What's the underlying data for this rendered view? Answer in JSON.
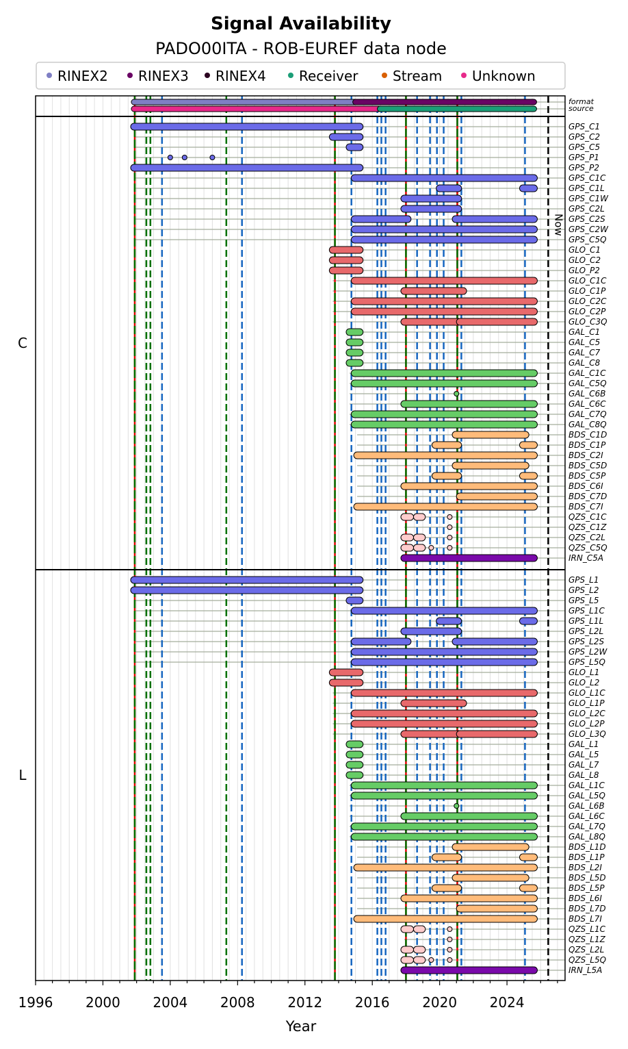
{
  "chart_data": {
    "type": "timeline",
    "title": "Signal Availability",
    "subtitle": "PADO00ITA - ROB-EUREF data node",
    "xlabel": "Year",
    "xlim": [
      1996,
      2027.45
    ],
    "xticks": [
      "1996",
      "2000",
      "2004",
      "2008",
      "2012",
      "2016",
      "2020",
      "2024"
    ],
    "legend": {
      "placement": "top",
      "entries": [
        {
          "label": "RINEX2",
          "color": "#7f7fc4"
        },
        {
          "label": "RINEX3",
          "color": "#6a0464"
        },
        {
          "label": "RINEX4",
          "color": "#2b0420"
        },
        {
          "label": "Receiver",
          "color": "#1b9e77"
        },
        {
          "label": "Stream",
          "color": "#d95f02"
        },
        {
          "label": "Unknown",
          "color": "#e7298a"
        }
      ]
    },
    "now_label": "Now",
    "now_year": 2026.45,
    "vlines": [
      {
        "year": 2001.89,
        "kind": "redgreen"
      },
      {
        "year": 2013.78,
        "kind": "redgreen"
      },
      {
        "year": 2018.0,
        "kind": "redgreen"
      },
      {
        "year": 2021.05,
        "kind": "redgreen"
      },
      {
        "year": 2002.58,
        "kind": "green"
      },
      {
        "year": 2002.82,
        "kind": "green"
      },
      {
        "year": 2007.33,
        "kind": "green"
      },
      {
        "year": 2003.51,
        "kind": "blue"
      },
      {
        "year": 2008.26,
        "kind": "blue"
      },
      {
        "year": 2014.76,
        "kind": "blue"
      },
      {
        "year": 2016.3,
        "kind": "blue"
      },
      {
        "year": 2016.54,
        "kind": "blue"
      },
      {
        "year": 2016.79,
        "kind": "blue"
      },
      {
        "year": 2018.66,
        "kind": "blue"
      },
      {
        "year": 2019.43,
        "kind": "blue"
      },
      {
        "year": 2019.84,
        "kind": "blue"
      },
      {
        "year": 2020.24,
        "kind": "blue"
      },
      {
        "year": 2021.29,
        "kind": "blue"
      },
      {
        "year": 2025.07,
        "kind": "blue"
      }
    ],
    "constellation_colors": {
      "GPS": "#6b6be8",
      "GLO": "#e8696b",
      "GAL": "#66cc66",
      "BDS": "#ffbb7a",
      "QZS": "#ffcccc",
      "IRN": "#7a0aaa"
    },
    "header_rows": [
      {
        "label": "format",
        "segments": [
          [
            2001.85,
            2015.0,
            "#7f7fc4"
          ],
          [
            2015.0,
            2025.6,
            "#6a0464"
          ]
        ]
      },
      {
        "label": "source",
        "segments": [
          [
            2001.85,
            2016.46,
            "#e7298a"
          ],
          [
            2016.46,
            2025.6,
            "#1b9e77"
          ]
        ]
      }
    ],
    "groups": [
      {
        "label": "C",
        "rows": [
          {
            "label": "GPS_C1",
            "segments": [
              [
                2001.85,
                2015.25
              ]
            ]
          },
          {
            "label": "GPS_C2",
            "segments": [
              [
                2013.65,
                2015.25
              ]
            ]
          },
          {
            "label": "GPS_C5",
            "segments": [
              [
                2014.65,
                2015.25
              ]
            ]
          },
          {
            "label": "GPS_P1",
            "segments": [
              [
                2004.0,
                2004.0
              ],
              [
                2004.85,
                2004.85
              ],
              [
                2006.5,
                2006.5
              ]
            ]
          },
          {
            "label": "GPS_P2",
            "segments": [
              [
                2001.85,
                2015.25
              ]
            ]
          },
          {
            "label": "GPS_C1C",
            "segments": [
              [
                2014.95,
                2025.6
              ]
            ]
          },
          {
            "label": "GPS_C1L",
            "segments": [
              [
                2020.0,
                2021.1
              ],
              [
                2024.95,
                2025.6
              ]
            ]
          },
          {
            "label": "GPS_C1W",
            "segments": [
              [
                2017.9,
                2021.1
              ]
            ]
          },
          {
            "label": "GPS_C2L",
            "segments": [
              [
                2017.9,
                2021.1
              ]
            ]
          },
          {
            "label": "GPS_C2S",
            "segments": [
              [
                2014.95,
                2018.1
              ],
              [
                2020.95,
                2025.6
              ]
            ]
          },
          {
            "label": "GPS_C2W",
            "segments": [
              [
                2014.95,
                2025.6
              ]
            ]
          },
          {
            "label": "GPS_C5Q",
            "segments": [
              [
                2014.95,
                2025.6
              ]
            ]
          },
          {
            "label": "GLO_C1",
            "segments": [
              [
                2013.65,
                2015.25
              ]
            ]
          },
          {
            "label": "GLO_C2",
            "segments": [
              [
                2013.65,
                2015.25
              ]
            ]
          },
          {
            "label": "GLO_P2",
            "segments": [
              [
                2013.65,
                2015.25
              ]
            ]
          },
          {
            "label": "GLO_C1C",
            "segments": [
              [
                2014.95,
                2025.6
              ]
            ]
          },
          {
            "label": "GLO_C1P",
            "segments": [
              [
                2017.9,
                2021.4
              ]
            ]
          },
          {
            "label": "GLO_C2C",
            "segments": [
              [
                2014.95,
                2025.6
              ]
            ]
          },
          {
            "label": "GLO_C2P",
            "segments": [
              [
                2014.95,
                2025.6
              ]
            ]
          },
          {
            "label": "GLO_C3Q",
            "segments": [
              [
                2017.9,
                2021.1
              ],
              [
                2021.2,
                2025.6
              ]
            ]
          },
          {
            "label": "GAL_C1",
            "segments": [
              [
                2014.65,
                2015.25
              ]
            ]
          },
          {
            "label": "GAL_C5",
            "segments": [
              [
                2014.65,
                2015.25
              ]
            ]
          },
          {
            "label": "GAL_C7",
            "segments": [
              [
                2014.65,
                2015.25
              ]
            ]
          },
          {
            "label": "GAL_C8",
            "segments": [
              [
                2014.65,
                2015.25
              ]
            ]
          },
          {
            "label": "GAL_C1C",
            "segments": [
              [
                2014.95,
                2025.6
              ]
            ]
          },
          {
            "label": "GAL_C5Q",
            "segments": [
              [
                2014.95,
                2025.6
              ]
            ]
          },
          {
            "label": "GAL_C6B",
            "segments": [
              [
                2021.0,
                2021.0
              ]
            ]
          },
          {
            "label": "GAL_C6C",
            "segments": [
              [
                2017.9,
                2025.6
              ]
            ]
          },
          {
            "label": "GAL_C7Q",
            "segments": [
              [
                2014.95,
                2025.6
              ]
            ]
          },
          {
            "label": "GAL_C8Q",
            "segments": [
              [
                2014.95,
                2025.6
              ]
            ]
          },
          {
            "label": "BDS_C1D",
            "segments": [
              [
                2020.95,
                2025.1
              ]
            ]
          },
          {
            "label": "BDS_C1P",
            "segments": [
              [
                2019.75,
                2021.1
              ],
              [
                2024.95,
                2025.6
              ]
            ]
          },
          {
            "label": "BDS_C2I",
            "segments": [
              [
                2015.1,
                2025.6
              ]
            ]
          },
          {
            "label": "BDS_C5D",
            "segments": [
              [
                2020.95,
                2025.1
              ]
            ]
          },
          {
            "label": "BDS_C5P",
            "segments": [
              [
                2019.75,
                2021.1
              ],
              [
                2024.95,
                2025.6
              ]
            ]
          },
          {
            "label": "BDS_C6I",
            "segments": [
              [
                2017.9,
                2025.6
              ]
            ]
          },
          {
            "label": "BDS_C7D",
            "segments": [
              [
                2021.2,
                2025.6
              ]
            ]
          },
          {
            "label": "BDS_C7I",
            "segments": [
              [
                2015.1,
                2025.6
              ]
            ]
          },
          {
            "label": "QZS_C1C",
            "segments": [
              [
                2017.9,
                2018.25
              ],
              [
                2018.65,
                2018.95
              ],
              [
                2020.6,
                2020.6
              ]
            ]
          },
          {
            "label": "QZS_C1Z",
            "segments": [
              [
                2020.6,
                2020.6
              ]
            ]
          },
          {
            "label": "QZS_C2L",
            "segments": [
              [
                2017.9,
                2018.25
              ],
              [
                2018.65,
                2018.95
              ],
              [
                2020.6,
                2020.6
              ]
            ]
          },
          {
            "label": "QZS_C5Q",
            "segments": [
              [
                2017.9,
                2018.25
              ],
              [
                2018.65,
                2018.95
              ],
              [
                2019.5,
                2019.5
              ],
              [
                2020.6,
                2020.6
              ]
            ]
          },
          {
            "label": "IRN_C5A",
            "segments": [
              [
                2017.9,
                2025.6
              ]
            ]
          }
        ]
      },
      {
        "label": "L",
        "rows": [
          {
            "label": "GPS_L1",
            "segments": [
              [
                2001.85,
                2015.25
              ]
            ]
          },
          {
            "label": "GPS_L2",
            "segments": [
              [
                2001.85,
                2015.25
              ]
            ]
          },
          {
            "label": "GPS_L5",
            "segments": [
              [
                2014.65,
                2015.25
              ]
            ]
          },
          {
            "label": "GPS_L1C",
            "segments": [
              [
                2014.95,
                2025.6
              ]
            ]
          },
          {
            "label": "GPS_L1L",
            "segments": [
              [
                2020.0,
                2021.1
              ],
              [
                2024.95,
                2025.6
              ]
            ]
          },
          {
            "label": "GPS_L2L",
            "segments": [
              [
                2017.9,
                2021.1
              ]
            ]
          },
          {
            "label": "GPS_L2S",
            "segments": [
              [
                2014.95,
                2018.1
              ],
              [
                2020.95,
                2025.6
              ]
            ]
          },
          {
            "label": "GPS_L2W",
            "segments": [
              [
                2014.95,
                2025.6
              ]
            ]
          },
          {
            "label": "GPS_L5Q",
            "segments": [
              [
                2014.95,
                2025.6
              ]
            ]
          },
          {
            "label": "GLO_L1",
            "segments": [
              [
                2013.65,
                2015.25
              ]
            ]
          },
          {
            "label": "GLO_L2",
            "segments": [
              [
                2013.65,
                2015.25
              ]
            ]
          },
          {
            "label": "GLO_L1C",
            "segments": [
              [
                2014.95,
                2025.6
              ]
            ]
          },
          {
            "label": "GLO_L1P",
            "segments": [
              [
                2017.9,
                2021.4
              ]
            ]
          },
          {
            "label": "GLO_L2C",
            "segments": [
              [
                2014.95,
                2025.6
              ]
            ]
          },
          {
            "label": "GLO_L2P",
            "segments": [
              [
                2014.95,
                2025.6
              ]
            ]
          },
          {
            "label": "GLO_L3Q",
            "segments": [
              [
                2017.9,
                2021.1
              ],
              [
                2021.2,
                2025.6
              ]
            ]
          },
          {
            "label": "GAL_L1",
            "segments": [
              [
                2014.65,
                2015.25
              ]
            ]
          },
          {
            "label": "GAL_L5",
            "segments": [
              [
                2014.65,
                2015.25
              ]
            ]
          },
          {
            "label": "GAL_L7",
            "segments": [
              [
                2014.65,
                2015.25
              ]
            ]
          },
          {
            "label": "GAL_L8",
            "segments": [
              [
                2014.65,
                2015.25
              ]
            ]
          },
          {
            "label": "GAL_L1C",
            "segments": [
              [
                2014.95,
                2025.6
              ]
            ]
          },
          {
            "label": "GAL_L5Q",
            "segments": [
              [
                2014.95,
                2025.6
              ]
            ]
          },
          {
            "label": "GAL_L6B",
            "segments": [
              [
                2021.0,
                2021.0
              ]
            ]
          },
          {
            "label": "GAL_L6C",
            "segments": [
              [
                2017.9,
                2025.6
              ]
            ]
          },
          {
            "label": "GAL_L7Q",
            "segments": [
              [
                2014.95,
                2025.6
              ]
            ]
          },
          {
            "label": "GAL_L8Q",
            "segments": [
              [
                2014.95,
                2025.6
              ]
            ]
          },
          {
            "label": "BDS_L1D",
            "segments": [
              [
                2020.95,
                2025.1
              ]
            ]
          },
          {
            "label": "BDS_L1P",
            "segments": [
              [
                2019.75,
                2021.1
              ],
              [
                2024.95,
                2025.6
              ]
            ]
          },
          {
            "label": "BDS_L2I",
            "segments": [
              [
                2015.1,
                2025.6
              ]
            ]
          },
          {
            "label": "BDS_L5D",
            "segments": [
              [
                2020.95,
                2025.1
              ]
            ]
          },
          {
            "label": "BDS_L5P",
            "segments": [
              [
                2019.75,
                2021.1
              ],
              [
                2024.95,
                2025.6
              ]
            ]
          },
          {
            "label": "BDS_L6I",
            "segments": [
              [
                2017.9,
                2025.6
              ]
            ]
          },
          {
            "label": "BDS_L7D",
            "segments": [
              [
                2021.2,
                2025.6
              ]
            ]
          },
          {
            "label": "BDS_L7I",
            "segments": [
              [
                2015.1,
                2025.6
              ]
            ]
          },
          {
            "label": "QZS_L1C",
            "segments": [
              [
                2017.9,
                2018.25
              ],
              [
                2018.65,
                2018.95
              ],
              [
                2020.6,
                2020.6
              ]
            ]
          },
          {
            "label": "QZS_L1Z",
            "segments": [
              [
                2020.6,
                2020.6
              ]
            ]
          },
          {
            "label": "QZS_L2L",
            "segments": [
              [
                2017.9,
                2018.25
              ],
              [
                2018.65,
                2018.95
              ],
              [
                2020.6,
                2020.6
              ]
            ]
          },
          {
            "label": "QZS_L5Q",
            "segments": [
              [
                2017.9,
                2018.25
              ],
              [
                2018.65,
                2018.95
              ],
              [
                2019.5,
                2019.5
              ],
              [
                2020.6,
                2020.6
              ]
            ]
          },
          {
            "label": "IRN_L5A",
            "segments": [
              [
                2017.9,
                2025.6
              ]
            ]
          }
        ]
      }
    ]
  }
}
